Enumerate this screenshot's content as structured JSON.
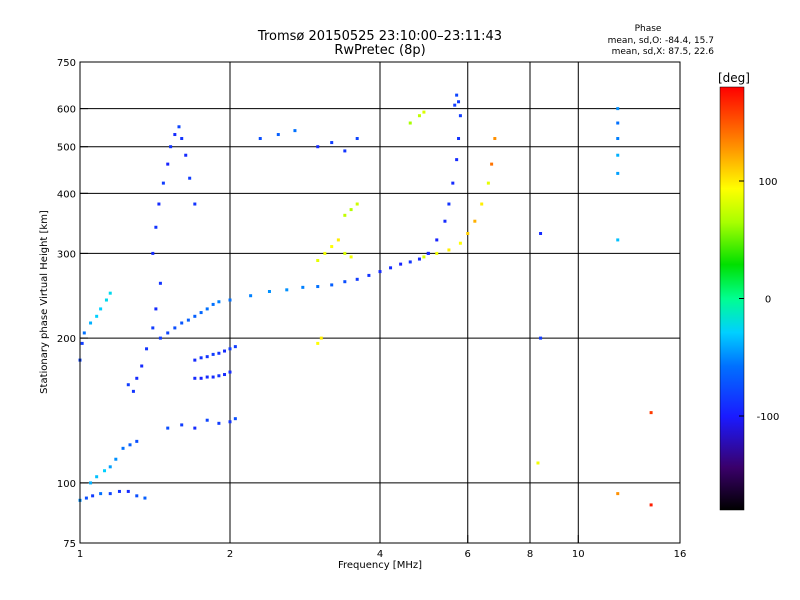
{
  "header": {
    "title_line1": "Tromsø 20150525 23:10:00–23:11:43",
    "title_line2": "RwPretec (8p)"
  },
  "phase_stats": {
    "heading": "Phase",
    "line_o": "mean, sd,O: -84.4, 15.7",
    "line_x": "mean, sd,X:  87.5, 22.6"
  },
  "colorbar": {
    "unit_label": "[deg]",
    "min": -180,
    "max": 180,
    "ticks": [
      {
        "value": 100,
        "label": "100"
      },
      {
        "value": 0,
        "label": "0"
      },
      {
        "value": -100,
        "label": "-100"
      }
    ]
  },
  "chart_data": {
    "type": "scatter",
    "xlabel": "Frequency [MHz]",
    "ylabel": "Stationary phase Virtual Height [km]",
    "xscale": "log",
    "yscale": "log",
    "xlim": [
      1,
      16
    ],
    "ylim": [
      75,
      750
    ],
    "xticks": [
      {
        "value": 1,
        "label": "1"
      },
      {
        "value": 2,
        "label": "2"
      },
      {
        "value": 4,
        "label": "4"
      },
      {
        "value": 6,
        "label": "6"
      },
      {
        "value": 8,
        "label": "8"
      },
      {
        "value": 10,
        "label": "10"
      },
      {
        "value": 16,
        "label": "16"
      }
    ],
    "yticks": [
      {
        "value": 75,
        "label": "75"
      },
      {
        "value": 100,
        "label": "100"
      },
      {
        "value": 200,
        "label": "200"
      },
      {
        "value": 300,
        "label": "300"
      },
      {
        "value": 400,
        "label": "400"
      },
      {
        "value": 500,
        "label": "500"
      },
      {
        "value": 600,
        "label": "600"
      },
      {
        "value": 750,
        "label": "750"
      }
    ],
    "vgrid": [
      2,
      4,
      6,
      8,
      10
    ],
    "hgrid": [
      100,
      200,
      300,
      400,
      500,
      600
    ],
    "grid": true,
    "color_encoding": "phase in degrees",
    "series": [
      {
        "x": [
          1.0,
          1.01,
          1.02,
          1.05,
          1.08,
          1.1,
          1.13,
          1.15
        ],
        "y": [
          180,
          195,
          205,
          215,
          222,
          230,
          240,
          248
        ],
        "phase": [
          -85,
          -90,
          -60,
          -40,
          -30,
          -30,
          -25,
          -25
        ]
      },
      {
        "x": [
          1.0,
          1.03,
          1.06,
          1.1,
          1.15,
          1.2,
          1.25,
          1.3,
          1.35
        ],
        "y": [
          92,
          93,
          94,
          95,
          95,
          96,
          96,
          94,
          93
        ],
        "phase": [
          -50,
          -80,
          -90,
          -60,
          -85,
          -95,
          -100,
          -80,
          -70
        ]
      },
      {
        "x": [
          1.05,
          1.08,
          1.12,
          1.15,
          1.18,
          1.22,
          1.26,
          1.3
        ],
        "y": [
          100,
          103,
          106,
          108,
          112,
          118,
          120,
          122
        ],
        "phase": [
          -40,
          -35,
          -30,
          -45,
          -50,
          -60,
          -70,
          -80
        ]
      },
      {
        "x": [
          1.25,
          1.28,
          1.3,
          1.33,
          1.36,
          1.4,
          1.42,
          1.45
        ],
        "y": [
          160,
          155,
          165,
          175,
          190,
          210,
          230,
          260
        ],
        "phase": [
          -90,
          -95,
          -100,
          -100,
          -95,
          -90,
          -100,
          -95
        ]
      },
      {
        "x": [
          1.4,
          1.42,
          1.44,
          1.47,
          1.5,
          1.52,
          1.55,
          1.58,
          1.6,
          1.63,
          1.66,
          1.7
        ],
        "y": [
          300,
          340,
          380,
          420,
          460,
          500,
          530,
          550,
          520,
          480,
          430,
          380
        ],
        "phase": [
          -100,
          -95,
          -100,
          -90,
          -105,
          -95,
          -100,
          -85,
          -95,
          -100,
          -90,
          -95
        ]
      },
      {
        "x": [
          1.45,
          1.5,
          1.55,
          1.6,
          1.65,
          1.7,
          1.75,
          1.8,
          1.85,
          1.9
        ],
        "y": [
          200,
          205,
          210,
          215,
          218,
          222,
          226,
          230,
          235,
          238
        ],
        "phase": [
          -90,
          -85,
          -80,
          -75,
          -70,
          -70,
          -65,
          -60,
          -60,
          -55
        ]
      },
      {
        "x": [
          1.7,
          1.75,
          1.8,
          1.85,
          1.9,
          1.95,
          2.0
        ],
        "y": [
          165,
          165,
          166,
          166,
          167,
          168,
          170
        ],
        "phase": [
          -100,
          -105,
          -100,
          -100,
          -95,
          -100,
          -100
        ]
      },
      {
        "x": [
          1.7,
          1.75,
          1.8,
          1.85,
          1.9,
          1.95,
          2.0,
          2.05
        ],
        "y": [
          180,
          182,
          183,
          185,
          186,
          188,
          190,
          192
        ],
        "phase": [
          -100,
          -95,
          -95,
          -90,
          -95,
          -100,
          -90,
          -90
        ]
      },
      {
        "x": [
          1.5,
          1.6,
          1.7,
          1.8,
          1.9,
          2.0,
          2.05
        ],
        "y": [
          130,
          132,
          130,
          135,
          133,
          134,
          136
        ],
        "phase": [
          -80,
          -90,
          -100,
          -85,
          -90,
          -95,
          -80
        ]
      },
      {
        "x": [
          2.0,
          2.2,
          2.4,
          2.6,
          2.8,
          3.0,
          3.2,
          3.4,
          3.6,
          3.8,
          4.0,
          4.2,
          4.4,
          4.6,
          4.8,
          5.0
        ],
        "y": [
          240,
          245,
          250,
          252,
          255,
          256,
          258,
          262,
          265,
          270,
          275,
          280,
          285,
          288,
          292,
          300
        ],
        "phase": [
          -60,
          -55,
          -50,
          -50,
          -55,
          -60,
          -70,
          -80,
          -90,
          -95,
          -100,
          -100,
          -105,
          -95,
          -100,
          -100
        ]
      },
      {
        "x": [
          5.0,
          5.2,
          5.4,
          5.5,
          5.6,
          5.7,
          5.75,
          5.8,
          5.75,
          5.7,
          5.65
        ],
        "y": [
          300,
          320,
          350,
          380,
          420,
          470,
          520,
          580,
          620,
          640,
          610
        ],
        "phase": [
          -100,
          -105,
          -100,
          -95,
          -100,
          -100,
          -95,
          -90,
          -90,
          -85,
          -90
        ]
      },
      {
        "x": [
          4.9,
          5.2,
          5.5,
          5.8,
          6.0,
          6.2,
          6.4,
          6.6,
          6.7,
          6.8
        ],
        "y": [
          295,
          300,
          305,
          315,
          330,
          350,
          380,
          420,
          460,
          520
        ],
        "phase": [
          80,
          90,
          100,
          95,
          110,
          120,
          100,
          85,
          140,
          130
        ]
      },
      {
        "x": [
          3.0,
          3.1,
          3.2,
          3.3,
          3.4,
          3.5
        ],
        "y": [
          290,
          300,
          310,
          320,
          300,
          295
        ],
        "phase": [
          85,
          90,
          95,
          100,
          80,
          90
        ]
      },
      {
        "x": [
          3.4,
          3.5,
          3.6
        ],
        "y": [
          360,
          370,
          380
        ],
        "phase": [
          70,
          65,
          75
        ]
      },
      {
        "x": [
          4.6,
          4.8,
          4.9
        ],
        "y": [
          560,
          580,
          590
        ],
        "phase": [
          60,
          70,
          80
        ]
      },
      {
        "x": [
          3.0,
          3.05
        ],
        "y": [
          195,
          200
        ],
        "phase": [
          95,
          100
        ]
      },
      {
        "x": [
          2.3,
          2.5,
          2.7,
          3.0,
          3.2,
          3.4,
          3.6
        ],
        "y": [
          520,
          530,
          540,
          500,
          510,
          490,
          520
        ],
        "phase": [
          -80,
          -70,
          -60,
          -100,
          -90,
          -95,
          -85
        ]
      },
      {
        "x": [
          12.0,
          12.0,
          12.0,
          12.0,
          12.0,
          12.0
        ],
        "y": [
          600,
          560,
          520,
          480,
          440,
          320
        ],
        "phase": [
          -50,
          -60,
          -55,
          -40,
          -45,
          -35
        ]
      },
      {
        "x": [
          8.4,
          8.4,
          8.3,
          12.0,
          14.0,
          14.0
        ],
        "y": [
          330,
          200,
          110,
          95,
          140,
          90
        ],
        "phase": [
          -100,
          -90,
          90,
          130,
          160,
          170
        ]
      }
    ]
  }
}
